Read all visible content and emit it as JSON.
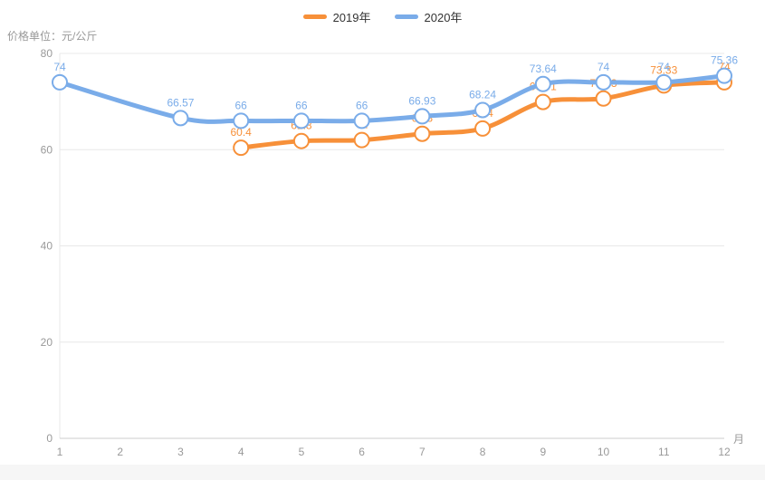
{
  "chart_data": {
    "type": "line",
    "title": "价格单位：元/公斤",
    "xlabel": "月",
    "ylabel": "价格单位：元/公斤",
    "x_ticks": [
      "1",
      "2",
      "3",
      "4",
      "5",
      "6",
      "7",
      "8",
      "9",
      "10",
      "11",
      "12"
    ],
    "x_unit": "月",
    "y_ticks": [
      0,
      20,
      40,
      60,
      80
    ],
    "ylim": [
      0,
      80
    ],
    "grid": true,
    "legend_position": "top-center",
    "smooth": true,
    "axis_text_color": "#999999",
    "grid_color": "#e8e8e8",
    "axis_line_color": "#cccccc",
    "series": [
      {
        "name": "2019年",
        "color": "#f79039",
        "data": [
          {
            "x": 4,
            "v": 60.4
          },
          {
            "x": 5,
            "v": 61.8
          },
          {
            "x": 6,
            "v": 62
          },
          {
            "x": 7,
            "v": 63.3
          },
          {
            "x": 8,
            "v": 64.4
          },
          {
            "x": 9,
            "v": 69.91
          },
          {
            "x": 10,
            "v": 70.63
          },
          {
            "x": 11,
            "v": 73.33
          },
          {
            "x": 12,
            "v": 74
          }
        ]
      },
      {
        "name": "2020年",
        "color": "#7aace9",
        "data": [
          {
            "x": 1,
            "v": 74
          },
          {
            "x": 3,
            "v": 66.57
          },
          {
            "x": 4,
            "v": 66
          },
          {
            "x": 5,
            "v": 66
          },
          {
            "x": 6,
            "v": 66
          },
          {
            "x": 7,
            "v": 66.93
          },
          {
            "x": 8,
            "v": 68.24
          },
          {
            "x": 9,
            "v": 73.64
          },
          {
            "x": 10,
            "v": 74
          },
          {
            "x": 11,
            "v": 74
          },
          {
            "x": 12,
            "v": 75.36
          }
        ]
      }
    ]
  }
}
